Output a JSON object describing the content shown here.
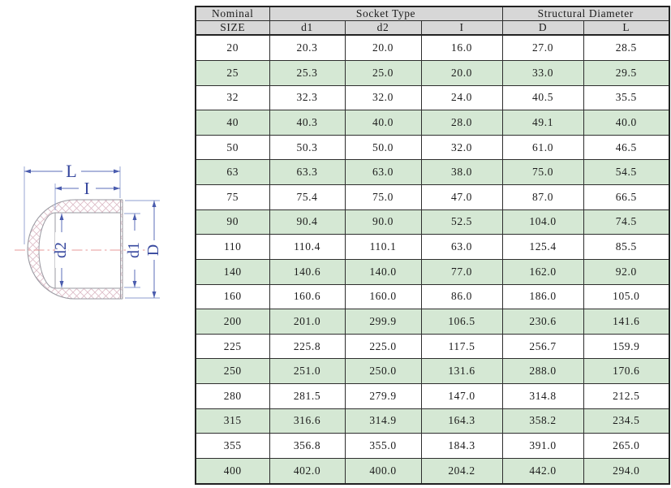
{
  "diagram": {
    "title": "pipe-end-cap-cross-section",
    "labels": {
      "L": "L",
      "I": "I",
      "d2": "d2",
      "d1": "d1",
      "D": "D"
    },
    "colors": {
      "dimension_line": "#5b6cb8",
      "dimension_text": "#36479e",
      "centerline": "#e79a9a",
      "hatch": "#debdc8",
      "outline": "#9a9aa2"
    }
  },
  "table": {
    "header": {
      "nominal": "Nominal",
      "size": "SIZE",
      "socket_type": "Socket Type",
      "structural_diameter": "Structural Diameter",
      "cols": {
        "d1": "d1",
        "d2": "d2",
        "i": "I",
        "d": "D",
        "l": "L"
      }
    },
    "colors": {
      "header_bg": "#d7d7d7",
      "row_alt_bg": "#d5e8d4",
      "border": "#2e2e2e"
    },
    "rows": [
      [
        "20",
        "20.3",
        "20.0",
        "16.0",
        "27.0",
        "28.5"
      ],
      [
        "25",
        "25.3",
        "25.0",
        "20.0",
        "33.0",
        "29.5"
      ],
      [
        "32",
        "32.3",
        "32.0",
        "24.0",
        "40.5",
        "35.5"
      ],
      [
        "40",
        "40.3",
        "40.0",
        "28.0",
        "49.1",
        "40.0"
      ],
      [
        "50",
        "50.3",
        "50.0",
        "32.0",
        "61.0",
        "46.5"
      ],
      [
        "63",
        "63.3",
        "63.0",
        "38.0",
        "75.0",
        "54.5"
      ],
      [
        "75",
        "75.4",
        "75.0",
        "47.0",
        "87.0",
        "66.5"
      ],
      [
        "90",
        "90.4",
        "90.0",
        "52.5",
        "104.0",
        "74.5"
      ],
      [
        "110",
        "110.4",
        "110.1",
        "63.0",
        "125.4",
        "85.5"
      ],
      [
        "140",
        "140.6",
        "140.0",
        "77.0",
        "162.0",
        "92.0"
      ],
      [
        "160",
        "160.6",
        "160.0",
        "86.0",
        "186.0",
        "105.0"
      ],
      [
        "200",
        "201.0",
        "299.9",
        "106.5",
        "230.6",
        "141.6"
      ],
      [
        "225",
        "225.8",
        "225.0",
        "117.5",
        "256.7",
        "159.9"
      ],
      [
        "250",
        "251.0",
        "250.0",
        "131.6",
        "288.0",
        "170.6"
      ],
      [
        "280",
        "281.5",
        "279.9",
        "147.0",
        "314.8",
        "212.5"
      ],
      [
        "315",
        "316.6",
        "314.9",
        "164.3",
        "358.2",
        "234.5"
      ],
      [
        "355",
        "356.8",
        "355.0",
        "184.3",
        "391.0",
        "265.0"
      ],
      [
        "400",
        "402.0",
        "400.0",
        "204.2",
        "442.0",
        "294.0"
      ]
    ]
  }
}
